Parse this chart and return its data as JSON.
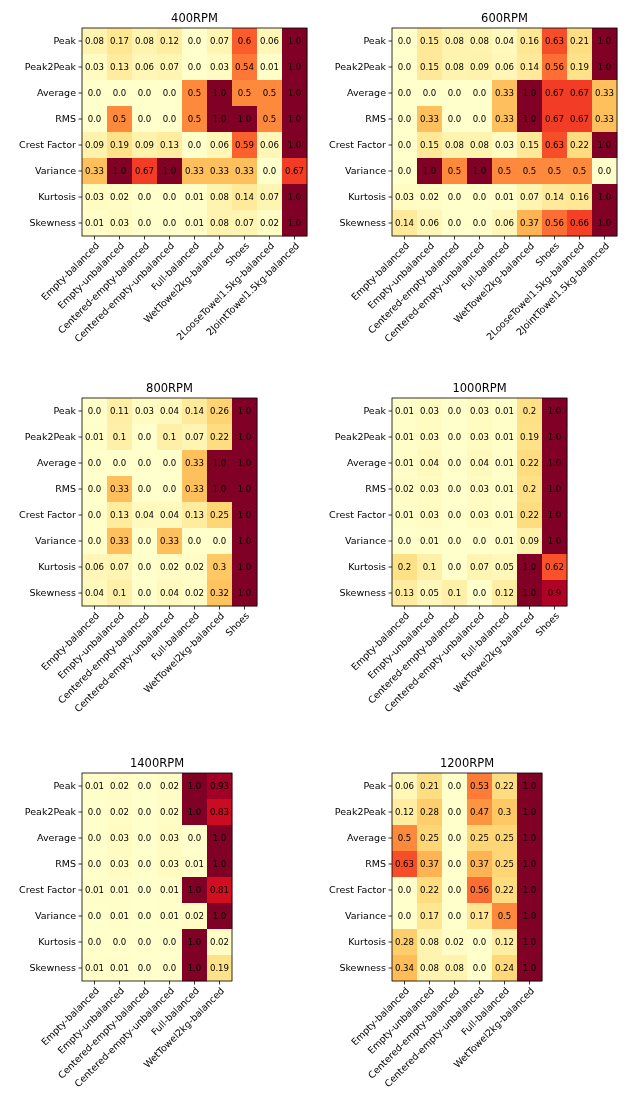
{
  "chart_data": [
    {
      "type": "heatmap",
      "title": "400RPM",
      "categories": [
        "Empty-balanced",
        "Empty-unbalanced",
        "Centered-empty-balanced",
        "Centered-empty-unbalanced",
        "Full-balanced",
        "WetTowel2kg-balanced",
        "Shoes",
        "2LooseTowel1.5kg-balanced",
        "2JointTowel1.5kg-balanced"
      ],
      "y_categories": [
        "Peak",
        "Peak2Peak",
        "Average",
        "RMS",
        "Crest Factor",
        "Variance",
        "Kurtosis",
        "Skewness"
      ],
      "cells": [
        [
          0.08,
          0.17,
          0.08,
          0.12,
          0.0,
          0.07,
          0.6,
          0.06,
          1.0
        ],
        [
          0.03,
          0.13,
          0.06,
          0.07,
          0.0,
          0.03,
          0.54,
          0.01,
          1.0
        ],
        [
          0.0,
          0.0,
          0.0,
          0.0,
          0.5,
          1.0,
          0.5,
          0.5,
          1.0
        ],
        [
          0.0,
          0.5,
          0.0,
          0.0,
          0.5,
          1.0,
          1.0,
          0.5,
          1.0
        ],
        [
          0.09,
          0.19,
          0.09,
          0.13,
          0.0,
          0.06,
          0.59,
          0.06,
          1.0
        ],
        [
          0.33,
          1.0,
          0.67,
          1.0,
          0.33,
          0.33,
          0.33,
          0.0,
          0.67
        ],
        [
          0.03,
          0.02,
          0.0,
          0.0,
          0.01,
          0.08,
          0.14,
          0.07,
          1.0
        ],
        [
          0.01,
          0.03,
          0.0,
          0.0,
          0.01,
          0.08,
          0.07,
          0.02,
          1.0
        ]
      ],
      "cell_labels": [
        [
          "0.08",
          "0.17",
          "0.08",
          "0.12",
          "0.0",
          "0.07",
          "0.6",
          "0.06",
          "1.0"
        ],
        [
          "0.03",
          "0.13",
          "0.06",
          "0.07",
          "0.0",
          "0.03",
          "0.54",
          "0.01",
          "1.0"
        ],
        [
          "0.0",
          "0.0",
          "0.0",
          "0.0",
          "0.5",
          "1.0",
          "0.5",
          "0.5",
          "1.0"
        ],
        [
          "0.0",
          "0.5",
          "0.0",
          "0.0",
          "0.5",
          "1.0",
          "1.0",
          "0.5",
          "1.0"
        ],
        [
          "0.09",
          "0.19",
          "0.09",
          "0.13",
          "0.0",
          "0.06",
          "0.59",
          "0.06",
          "1.0"
        ],
        [
          "0.33",
          "1.0",
          "0.67",
          "1.0",
          "0.33",
          "0.33",
          "0.33",
          "0.0",
          "0.67"
        ],
        [
          "0.03",
          "0.02",
          "0.0",
          "0.0",
          "0.01",
          "0.08",
          "0.14",
          "0.07",
          "1.0"
        ],
        [
          "0.01",
          "0.03",
          "0.0",
          "0.0",
          "0.01",
          "0.08",
          "0.07",
          "0.02",
          "1.0"
        ]
      ]
    },
    {
      "type": "heatmap",
      "title": "600RPM",
      "categories": [
        "Empty-balanced",
        "Empty-unbalanced",
        "Centered-empty-balanced",
        "Centered-empty-unbalanced",
        "Full-balanced",
        "WetTowel2kg-balanced",
        "Shoes",
        "2LooseTowel1.5kg-balanced",
        "2JointTowel1.5kg-balanced"
      ],
      "y_categories": [
        "Peak",
        "Peak2Peak",
        "Average",
        "RMS",
        "Crest Factor",
        "Variance",
        "Kurtosis",
        "Skewness"
      ],
      "cells": [
        [
          0.0,
          0.15,
          0.08,
          0.08,
          0.04,
          0.16,
          0.63,
          0.21,
          1.0
        ],
        [
          0.0,
          0.15,
          0.08,
          0.09,
          0.06,
          0.14,
          0.56,
          0.19,
          1.0
        ],
        [
          0.0,
          0.0,
          0.0,
          0.0,
          0.33,
          1.0,
          0.67,
          0.67,
          0.33
        ],
        [
          0.0,
          0.33,
          0.0,
          0.0,
          0.33,
          1.0,
          0.67,
          0.67,
          0.33
        ],
        [
          0.0,
          0.15,
          0.08,
          0.08,
          0.03,
          0.15,
          0.63,
          0.22,
          1.0
        ],
        [
          0.0,
          1.0,
          0.5,
          1.0,
          0.5,
          0.5,
          0.5,
          0.5,
          0.0
        ],
        [
          0.03,
          0.02,
          0.0,
          0.0,
          0.01,
          0.07,
          0.14,
          0.16,
          1.0
        ],
        [
          0.14,
          0.06,
          0.0,
          0.0,
          0.06,
          0.37,
          0.56,
          0.66,
          1.0
        ]
      ],
      "cell_labels": [
        [
          "0.0",
          "0.15",
          "0.08",
          "0.08",
          "0.04",
          "0.16",
          "0.63",
          "0.21",
          "1.0"
        ],
        [
          "0.0",
          "0.15",
          "0.08",
          "0.09",
          "0.06",
          "0.14",
          "0.56",
          "0.19",
          "1.0"
        ],
        [
          "0.0",
          "0.0",
          "0.0",
          "0.0",
          "0.33",
          "1.0",
          "0.67",
          "0.67",
          "0.33"
        ],
        [
          "0.0",
          "0.33",
          "0.0",
          "0.0",
          "0.33",
          "1.0",
          "0.67",
          "0.67",
          "0.33"
        ],
        [
          "0.0",
          "0.15",
          "0.08",
          "0.08",
          "0.03",
          "0.15",
          "0.63",
          "0.22",
          "1.0"
        ],
        [
          "0.0",
          "1.0",
          "0.5",
          "1.0",
          "0.5",
          "0.5",
          "0.5",
          "0.5",
          "0.0"
        ],
        [
          "0.03",
          "0.02",
          "0.0",
          "0.0",
          "0.01",
          "0.07",
          "0.14",
          "0.16",
          "1.0"
        ],
        [
          "0.14",
          "0.06",
          "0.0",
          "0.0",
          "0.06",
          "0.37",
          "0.56",
          "0.66",
          "1.0"
        ]
      ]
    },
    {
      "type": "heatmap",
      "title": "800RPM",
      "categories": [
        "Empty-balanced",
        "Empty-unbalanced",
        "Centered-empty-balanced",
        "Centered-empty-unbalanced",
        "Full-balanced",
        "WetTowel2kg-balanced",
        "Shoes"
      ],
      "y_categories": [
        "Peak",
        "Peak2Peak",
        "Average",
        "RMS",
        "Crest Factor",
        "Variance",
        "Kurtosis",
        "Skewness"
      ],
      "cells": [
        [
          0.0,
          0.11,
          0.03,
          0.04,
          0.14,
          0.26,
          1.0
        ],
        [
          0.01,
          0.1,
          0.0,
          0.1,
          0.07,
          0.22,
          1.0
        ],
        [
          0.0,
          0.0,
          0.0,
          0.0,
          0.33,
          1.0,
          1.0
        ],
        [
          0.0,
          0.33,
          0.0,
          0.0,
          0.33,
          1.0,
          1.0
        ],
        [
          0.0,
          0.13,
          0.04,
          0.04,
          0.13,
          0.25,
          1.0
        ],
        [
          0.0,
          0.33,
          0.0,
          0.33,
          0.0,
          0.0,
          1.0
        ],
        [
          0.06,
          0.07,
          0.0,
          0.02,
          0.02,
          0.3,
          1.0
        ],
        [
          0.04,
          0.1,
          0.0,
          0.04,
          0.02,
          0.32,
          1.0
        ]
      ],
      "cell_labels": [
        [
          "0.0",
          "0.11",
          "0.03",
          "0.04",
          "0.14",
          "0.26",
          "1.0"
        ],
        [
          "0.01",
          "0.1",
          "0.0",
          "0.1",
          "0.07",
          "0.22",
          "1.0"
        ],
        [
          "0.0",
          "0.0",
          "0.0",
          "0.0",
          "0.33",
          "1.0",
          "1.0"
        ],
        [
          "0.0",
          "0.33",
          "0.0",
          "0.0",
          "0.33",
          "1.0",
          "1.0"
        ],
        [
          "0.0",
          "0.13",
          "0.04",
          "0.04",
          "0.13",
          "0.25",
          "1.0"
        ],
        [
          "0.0",
          "0.33",
          "0.0",
          "0.33",
          "0.0",
          "0.0",
          "1.0"
        ],
        [
          "0.06",
          "0.07",
          "0.0",
          "0.02",
          "0.02",
          "0.3",
          "1.0"
        ],
        [
          "0.04",
          "0.1",
          "0.0",
          "0.04",
          "0.02",
          "0.32",
          "1.0"
        ]
      ]
    },
    {
      "type": "heatmap",
      "title": "1000RPM",
      "categories": [
        "Empty-balanced",
        "Empty-unbalanced",
        "Centered-empty-balanced",
        "Centered-empty-unbalanced",
        "Full-balanced",
        "WetTowel2kg-balanced",
        "Shoes"
      ],
      "y_categories": [
        "Peak",
        "Peak2Peak",
        "Average",
        "RMS",
        "Crest Factor",
        "Variance",
        "Kurtosis",
        "Skewness"
      ],
      "cells": [
        [
          0.01,
          0.03,
          0.0,
          0.03,
          0.01,
          0.2,
          1.0
        ],
        [
          0.01,
          0.03,
          0.0,
          0.03,
          0.01,
          0.19,
          1.0
        ],
        [
          0.01,
          0.04,
          0.0,
          0.04,
          0.01,
          0.22,
          1.0
        ],
        [
          0.02,
          0.03,
          0.0,
          0.03,
          0.01,
          0.2,
          1.0
        ],
        [
          0.01,
          0.03,
          0.0,
          0.03,
          0.01,
          0.22,
          1.0
        ],
        [
          0.0,
          0.01,
          0.0,
          0.0,
          0.01,
          0.09,
          1.0
        ],
        [
          0.2,
          0.1,
          0.0,
          0.07,
          0.05,
          1.0,
          0.62
        ],
        [
          0.13,
          0.05,
          0.1,
          0.0,
          0.12,
          1.0,
          0.9
        ]
      ],
      "cell_labels": [
        [
          "0.01",
          "0.03",
          "0.0",
          "0.03",
          "0.01",
          "0.2",
          "1.0"
        ],
        [
          "0.01",
          "0.03",
          "0.0",
          "0.03",
          "0.01",
          "0.19",
          "1.0"
        ],
        [
          "0.01",
          "0.04",
          "0.0",
          "0.04",
          "0.01",
          "0.22",
          "1.0"
        ],
        [
          "0.02",
          "0.03",
          "0.0",
          "0.03",
          "0.01",
          "0.2",
          "1.0"
        ],
        [
          "0.01",
          "0.03",
          "0.0",
          "0.03",
          "0.01",
          "0.22",
          "1.0"
        ],
        [
          "0.0",
          "0.01",
          "0.0",
          "0.0",
          "0.01",
          "0.09",
          "1.0"
        ],
        [
          "0.2",
          "0.1",
          "0.0",
          "0.07",
          "0.05",
          "1.0",
          "0.62"
        ],
        [
          "0.13",
          "0.05",
          "0.1",
          "0.0",
          "0.12",
          "1.0",
          "0.9"
        ]
      ]
    },
    {
      "type": "heatmap",
      "title": "1400RPM",
      "categories": [
        "Empty-balanced",
        "Empty-unbalanced",
        "Centered-empty-balanced",
        "Centered-empty-unbalanced",
        "Full-balanced",
        "WetTowel2kg-balanced"
      ],
      "y_categories": [
        "Peak",
        "Peak2Peak",
        "Average",
        "RMS",
        "Crest Factor",
        "Variance",
        "Kurtosis",
        "Skewness"
      ],
      "cells": [
        [
          0.01,
          0.02,
          0.0,
          0.02,
          1.0,
          0.93
        ],
        [
          0.0,
          0.02,
          0.0,
          0.02,
          1.0,
          0.83
        ],
        [
          0.0,
          0.03,
          0.0,
          0.03,
          0.0,
          1.0
        ],
        [
          0.0,
          0.03,
          0.0,
          0.03,
          0.01,
          1.0
        ],
        [
          0.01,
          0.01,
          0.0,
          0.01,
          1.0,
          0.81
        ],
        [
          0.0,
          0.01,
          0.0,
          0.01,
          0.02,
          1.0
        ],
        [
          0.0,
          0.0,
          0.0,
          0.0,
          1.0,
          0.02
        ],
        [
          0.01,
          0.01,
          0.0,
          0.0,
          1.0,
          0.19
        ]
      ],
      "cell_labels": [
        [
          "0.01",
          "0.02",
          "0.0",
          "0.02",
          "1.0",
          "0.93"
        ],
        [
          "0.0",
          "0.02",
          "0.0",
          "0.02",
          "1.0",
          "0.83"
        ],
        [
          "0.0",
          "0.03",
          "0.0",
          "0.03",
          "0.0",
          "1.0"
        ],
        [
          "0.0",
          "0.03",
          "0.0",
          "0.03",
          "0.01",
          "1.0"
        ],
        [
          "0.01",
          "0.01",
          "0.0",
          "0.01",
          "1.0",
          "0.81"
        ],
        [
          "0.0",
          "0.01",
          "0.0",
          "0.01",
          "0.02",
          "1.0"
        ],
        [
          "0.0",
          "0.0",
          "0.0",
          "0.0",
          "1.0",
          "0.02"
        ],
        [
          "0.01",
          "0.01",
          "0.0",
          "0.0",
          "1.0",
          "0.19"
        ]
      ]
    },
    {
      "type": "heatmap",
      "title": "1200RPM",
      "categories": [
        "Empty-balanced",
        "Empty-unbalanced",
        "Centered-empty-balanced",
        "Centered-empty-unbalanced",
        "Full-balanced",
        "WetTowel2kg-balanced"
      ],
      "y_categories": [
        "Peak",
        "Peak2Peak",
        "Average",
        "RMS",
        "Crest Factor",
        "Variance",
        "Kurtosis",
        "Skewness"
      ],
      "cells": [
        [
          0.06,
          0.21,
          0.0,
          0.53,
          0.22,
          1.0
        ],
        [
          0.12,
          0.28,
          0.0,
          0.47,
          0.3,
          1.0
        ],
        [
          0.5,
          0.25,
          0.0,
          0.25,
          0.25,
          1.0
        ],
        [
          0.63,
          0.37,
          0.0,
          0.37,
          0.25,
          1.0
        ],
        [
          0.0,
          0.22,
          0.0,
          0.56,
          0.22,
          1.0
        ],
        [
          0.0,
          0.17,
          0.0,
          0.17,
          0.5,
          1.0
        ],
        [
          0.28,
          0.08,
          0.02,
          0.0,
          0.12,
          1.0
        ],
        [
          0.34,
          0.08,
          0.08,
          0.0,
          0.24,
          1.0
        ]
      ],
      "cell_labels": [
        [
          "0.06",
          "0.21",
          "0.0",
          "0.53",
          "0.22",
          "1.0"
        ],
        [
          "0.12",
          "0.28",
          "0.0",
          "0.47",
          "0.3",
          "1.0"
        ],
        [
          "0.5",
          "0.25",
          "0.0",
          "0.25",
          "0.25",
          "1.0"
        ],
        [
          "0.63",
          "0.37",
          "0.0",
          "0.37",
          "0.25",
          "1.0"
        ],
        [
          "0.0",
          "0.22",
          "0.0",
          "0.56",
          "0.22",
          "1.0"
        ],
        [
          "0.0",
          "0.17",
          "0.0",
          "0.17",
          "0.5",
          "1.0"
        ],
        [
          "0.28",
          "0.08",
          "0.02",
          "0.0",
          "0.12",
          "1.0"
        ],
        [
          "0.34",
          "0.08",
          "0.08",
          "0.0",
          "0.24",
          "1.0"
        ]
      ]
    }
  ]
}
